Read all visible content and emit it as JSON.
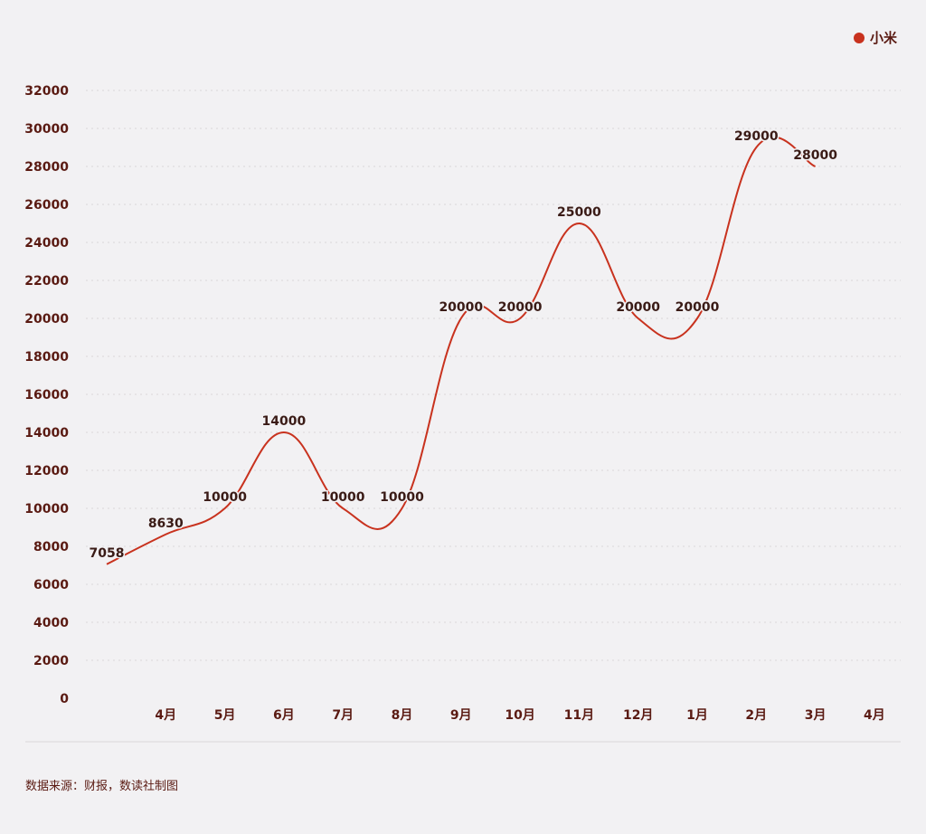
{
  "colors": {
    "line": "#c8321e",
    "text": "#5a1a12",
    "grid": "#d9d6da",
    "background": "#f2f1f3"
  },
  "source_text": "数据来源：财报，数读社制图",
  "chart_data": {
    "type": "line",
    "legend": {
      "position": "top-right"
    },
    "x": [
      "",
      "4月",
      "5月",
      "6月",
      "7月",
      "8月",
      "9月",
      "10月",
      "11月",
      "12月",
      "1月",
      "2月",
      "3月",
      "4月"
    ],
    "ylim": [
      0,
      32000
    ],
    "yticks": [
      0,
      2000,
      4000,
      6000,
      8000,
      10000,
      12000,
      14000,
      16000,
      18000,
      20000,
      22000,
      24000,
      26000,
      28000,
      30000,
      32000
    ],
    "grid": true,
    "series": [
      {
        "name": "小米",
        "color": "#c8321e",
        "values": [
          7058,
          8630,
          10000,
          14000,
          10000,
          10000,
          20000,
          20000,
          25000,
          20000,
          20000,
          29000,
          28000,
          null
        ],
        "labels": [
          "7058",
          "8630",
          "10000",
          "14000",
          "10000",
          "10000",
          "20000",
          "20000",
          "25000",
          "20000",
          "20000",
          "29000",
          "28000",
          ""
        ]
      }
    ]
  }
}
